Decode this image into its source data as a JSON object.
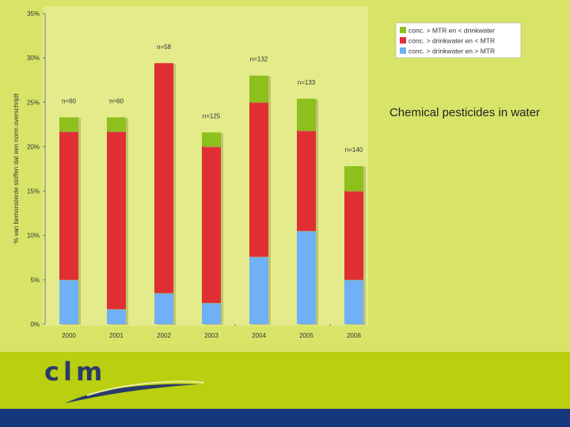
{
  "slide": {
    "title": "Chemical pesticides in water",
    "logo_text": "clm",
    "colors": {
      "background": "#d8e468",
      "footer_band": "#b9cf10",
      "bottom_bar": "#15377d"
    }
  },
  "chart_data": {
    "type": "bar",
    "stacked": true,
    "ylabel": "% van bemonsterde stoffen dat een norm overschrijdt",
    "xlabel": "",
    "ylim": [
      0,
      35
    ],
    "yticks": [
      "0%",
      "5%",
      "10%",
      "15%",
      "20%",
      "25%",
      "30%",
      "35%"
    ],
    "grid": false,
    "legend_position": "top-right",
    "categories": [
      "2000",
      "2001",
      "2002",
      "2003",
      "2004",
      "2005",
      "2006"
    ],
    "sample_sizes": [
      "n=60",
      "n=60",
      "n=58",
      "n=125",
      "n=132",
      "n=133",
      "n=140"
    ],
    "series": [
      {
        "name": "conc. > drinkwater en > MTR",
        "color": "#6fb0f6",
        "values": [
          5.0,
          1.7,
          3.5,
          2.4,
          7.6,
          10.5,
          5.0
        ]
      },
      {
        "name": "conc. > drinkwater en < MTR",
        "color": "#e02f33",
        "values": [
          16.7,
          20.0,
          25.9,
          17.6,
          17.4,
          11.3,
          10.0
        ]
      },
      {
        "name": "conc. > MTR en < drinkwater",
        "color": "#8dc01c",
        "values": [
          1.6,
          1.6,
          0.0,
          1.6,
          3.0,
          3.6,
          2.8
        ]
      }
    ],
    "legend_order": [
      2,
      1,
      0
    ]
  }
}
